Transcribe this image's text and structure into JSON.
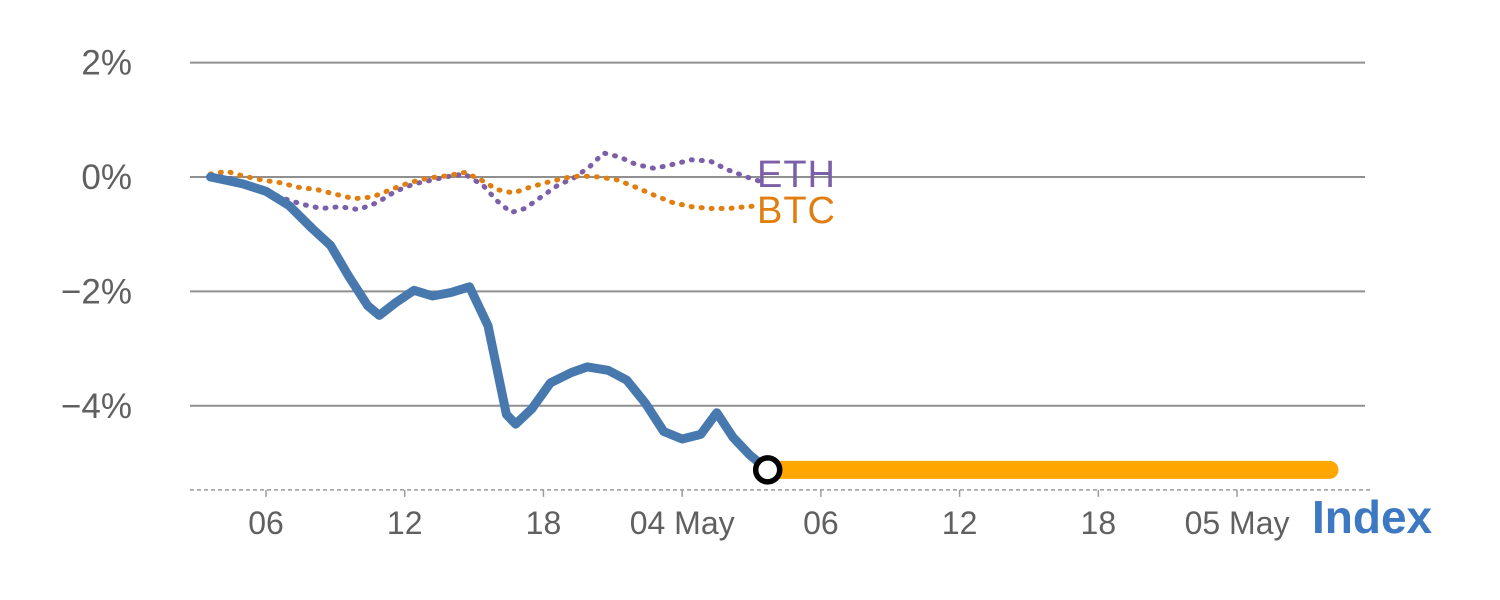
{
  "chart_data": {
    "type": "line",
    "title": "",
    "xlabel": "Index",
    "xlabel_color": "#3D79C2",
    "ylabel": "",
    "x_unit_note": "hours, 03 May 00:00 = 0",
    "xlim": [
      2.5,
      53.6
    ],
    "ylim": [
      -5.6,
      2.4
    ],
    "grid": true,
    "grid_color": "#8f8f8f",
    "tick_label_color": "#606060",
    "baseline": {
      "y": -5.47,
      "color": "#9a9a9a",
      "style": "dashed"
    },
    "y_ticks": [
      {
        "value": 2,
        "label": "2%"
      },
      {
        "value": 0,
        "label": "0%"
      },
      {
        "value": -2,
        "label": "−2%"
      },
      {
        "value": -4,
        "label": "−4%"
      }
    ],
    "x_ticks": [
      {
        "value": 6,
        "label": "06"
      },
      {
        "value": 12,
        "label": "12"
      },
      {
        "value": 18,
        "label": "18"
      },
      {
        "value": 24,
        "label": "04 May"
      },
      {
        "value": 30,
        "label": "06"
      },
      {
        "value": 36,
        "label": "12"
      },
      {
        "value": 42,
        "label": "18"
      },
      {
        "value": 48,
        "label": "05 May"
      }
    ],
    "series": [
      {
        "name": "ETH",
        "color": "#7B5FA8",
        "style": "dotted",
        "width": 5,
        "points": [
          [
            3.6,
            0.05
          ],
          [
            4.4,
            -0.02
          ],
          [
            5.2,
            -0.12
          ],
          [
            6.0,
            -0.25
          ],
          [
            6.8,
            -0.38
          ],
          [
            7.6,
            -0.48
          ],
          [
            8.4,
            -0.55
          ],
          [
            9.2,
            -0.52
          ],
          [
            10.0,
            -0.57
          ],
          [
            10.8,
            -0.45
          ],
          [
            11.6,
            -0.25
          ],
          [
            12.4,
            -0.12
          ],
          [
            13.2,
            -0.05
          ],
          [
            14.0,
            0.02
          ],
          [
            14.6,
            0.05
          ],
          [
            15.4,
            -0.15
          ],
          [
            16.0,
            -0.42
          ],
          [
            16.6,
            -0.62
          ],
          [
            17.2,
            -0.55
          ],
          [
            17.9,
            -0.35
          ],
          [
            18.6,
            -0.15
          ],
          [
            19.3,
            -0.02
          ],
          [
            20.0,
            0.18
          ],
          [
            20.6,
            0.42
          ],
          [
            21.3,
            0.35
          ],
          [
            22.0,
            0.22
          ],
          [
            22.8,
            0.15
          ],
          [
            23.6,
            0.22
          ],
          [
            24.4,
            0.3
          ],
          [
            25.2,
            0.28
          ],
          [
            26.0,
            0.12
          ],
          [
            26.8,
            0.0
          ],
          [
            27.4,
            -0.08
          ]
        ]
      },
      {
        "name": "BTC",
        "color": "#E07E10",
        "style": "dotted",
        "width": 5,
        "points": [
          [
            3.6,
            0.05
          ],
          [
            4.3,
            0.1
          ],
          [
            5.0,
            0.02
          ],
          [
            5.8,
            -0.05
          ],
          [
            6.6,
            -0.1
          ],
          [
            7.4,
            -0.18
          ],
          [
            8.2,
            -0.22
          ],
          [
            9.0,
            -0.3
          ],
          [
            9.8,
            -0.38
          ],
          [
            10.6,
            -0.35
          ],
          [
            11.4,
            -0.22
          ],
          [
            12.2,
            -0.1
          ],
          [
            13.0,
            -0.02
          ],
          [
            13.8,
            0.02
          ],
          [
            14.6,
            0.08
          ],
          [
            15.3,
            -0.05
          ],
          [
            16.0,
            -0.22
          ],
          [
            16.7,
            -0.28
          ],
          [
            17.4,
            -0.18
          ],
          [
            18.1,
            -0.1
          ],
          [
            18.9,
            -0.02
          ],
          [
            19.6,
            0.02
          ],
          [
            20.4,
            0.0
          ],
          [
            21.2,
            -0.05
          ],
          [
            22.0,
            -0.18
          ],
          [
            22.8,
            -0.32
          ],
          [
            23.6,
            -0.45
          ],
          [
            24.4,
            -0.52
          ],
          [
            25.2,
            -0.55
          ],
          [
            26.0,
            -0.55
          ],
          [
            26.8,
            -0.52
          ],
          [
            27.4,
            -0.5
          ]
        ]
      },
      {
        "name": "Index",
        "color": "#4779AF",
        "style": "solid",
        "width": 9,
        "points": [
          [
            3.6,
            0.0
          ],
          [
            4.2,
            -0.05
          ],
          [
            5.0,
            -0.12
          ],
          [
            6.0,
            -0.25
          ],
          [
            7.0,
            -0.5
          ],
          [
            8.0,
            -0.9
          ],
          [
            8.8,
            -1.2
          ],
          [
            9.6,
            -1.75
          ],
          [
            10.4,
            -2.25
          ],
          [
            10.9,
            -2.42
          ],
          [
            11.6,
            -2.2
          ],
          [
            12.4,
            -1.98
          ],
          [
            13.2,
            -2.08
          ],
          [
            14.0,
            -2.02
          ],
          [
            14.8,
            -1.92
          ],
          [
            15.6,
            -2.6
          ],
          [
            16.4,
            -4.15
          ],
          [
            16.8,
            -4.32
          ],
          [
            17.5,
            -4.05
          ],
          [
            18.3,
            -3.6
          ],
          [
            19.2,
            -3.42
          ],
          [
            19.9,
            -3.32
          ],
          [
            20.8,
            -3.38
          ],
          [
            21.6,
            -3.55
          ],
          [
            22.4,
            -3.95
          ],
          [
            23.2,
            -4.45
          ],
          [
            24.0,
            -4.58
          ],
          [
            24.8,
            -4.5
          ],
          [
            25.5,
            -4.12
          ],
          [
            26.2,
            -4.55
          ],
          [
            26.9,
            -4.85
          ],
          [
            27.7,
            -5.12
          ]
        ]
      },
      {
        "name": "Index flat continuation",
        "color": "#FFA600",
        "style": "solid",
        "width": 18,
        "points": [
          [
            27.7,
            -5.12
          ],
          [
            52.0,
            -5.12
          ]
        ]
      }
    ],
    "marker": {
      "x": 27.7,
      "y": -5.12,
      "radius": 12,
      "fill": "#FFFFFF",
      "stroke": "#000000",
      "stroke_width": 5.5
    },
    "annotations": [
      {
        "text": "ETH",
        "color": "#7B5FA8"
      },
      {
        "text": "BTC",
        "color": "#E07E10"
      }
    ],
    "legend_position": "inline-right-of-dotted-series"
  }
}
